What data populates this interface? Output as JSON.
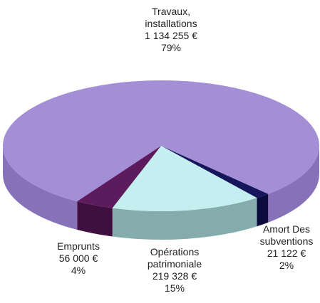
{
  "chart_data": {
    "type": "pie",
    "categories": [
      "Travaux,\ninstallations",
      "Amort Des\nsubventions",
      "Opérations\npatrimoniale",
      "Emprunts"
    ],
    "values": [
      1134255,
      21122,
      219328,
      56000
    ],
    "value_labels": [
      "1 134 255 €",
      "21 122 €",
      "219 328 €",
      "56 000 €"
    ],
    "percents": [
      79,
      2,
      15,
      4
    ],
    "percent_labels": [
      "79%",
      "2%",
      "15%",
      "4%"
    ],
    "colors": [
      "#a48ed6",
      "#16165c",
      "#c4eef0",
      "#5b1b5c"
    ],
    "side_colors": [
      "#8771b8",
      "#0b0b3c",
      "#84acac",
      "#3f0f3f"
    ]
  }
}
